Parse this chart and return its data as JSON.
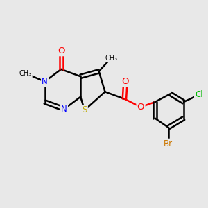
{
  "background_color": "#e8e8e8",
  "bond_color": "#000000",
  "bond_width": 1.8,
  "atom_colors": {
    "N": "#0000ff",
    "O": "#ff0000",
    "S": "#bbaa00",
    "Cl": "#00bb00",
    "Br": "#cc7700",
    "C": "#000000"
  },
  "font_size": 8.5
}
